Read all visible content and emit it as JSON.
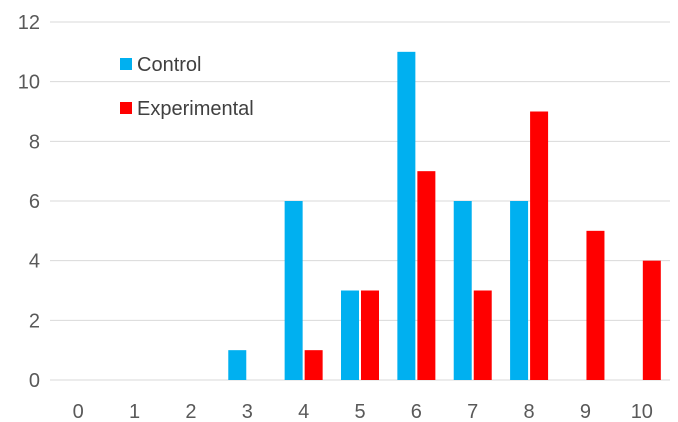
{
  "chart_data": {
    "type": "bar",
    "categories": [
      "0",
      "1",
      "2",
      "3",
      "4",
      "5",
      "6",
      "7",
      "8",
      "9",
      "10"
    ],
    "series": [
      {
        "name": "Control",
        "color": "#00b0f0",
        "values": [
          0,
          0,
          0,
          1,
          6,
          3,
          11,
          6,
          6,
          0,
          0
        ]
      },
      {
        "name": "Experimental",
        "color": "#ff0000",
        "values": [
          0,
          0,
          0,
          0,
          1,
          3,
          7,
          3,
          9,
          5,
          4
        ]
      }
    ],
    "y_ticks": [
      "0",
      "2",
      "4",
      "6",
      "8",
      "10",
      "12"
    ],
    "ylim": [
      0,
      12
    ],
    "grid": true,
    "legend_position": "top-left"
  }
}
